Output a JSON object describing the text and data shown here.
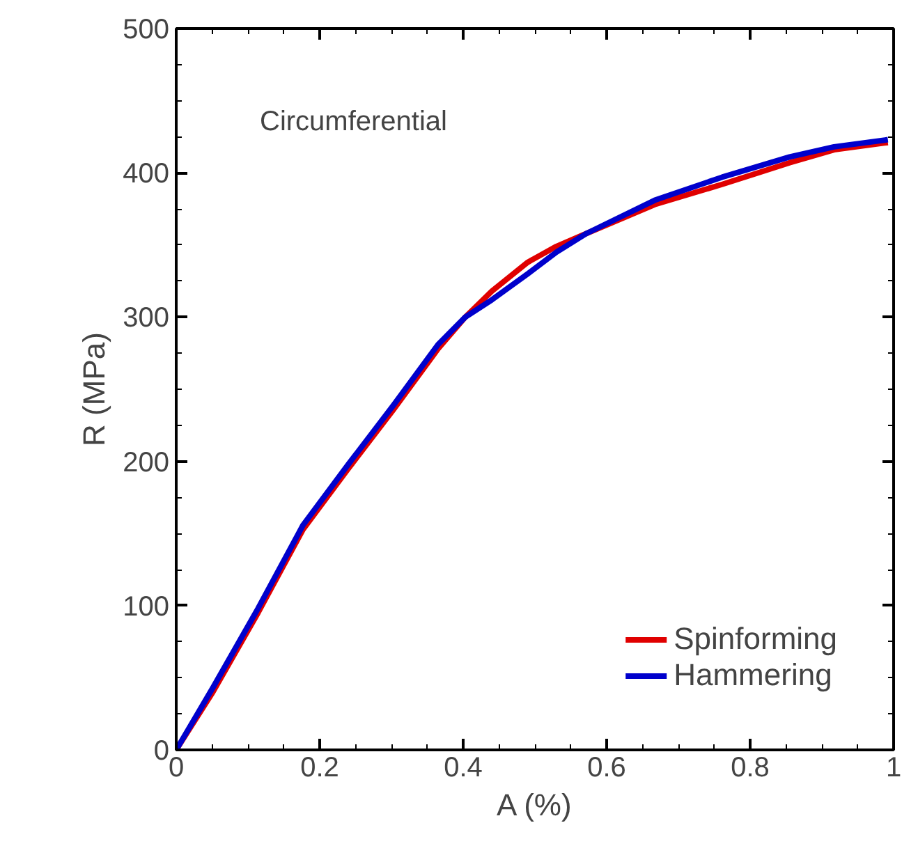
{
  "chart_data": {
    "type": "line",
    "xlabel": "A (%)",
    "ylabel": "R (MPa)",
    "annotations": [
      "Circumferential"
    ],
    "xlim": [
      0,
      1
    ],
    "ylim": [
      0,
      500
    ],
    "xticks": [
      0,
      0.2,
      0.4,
      0.6,
      0.8,
      1
    ],
    "yticks": [
      0,
      100,
      200,
      300,
      400,
      500
    ],
    "grid": false,
    "legend": "bottom right",
    "line_style": "solid",
    "marker": "none",
    "series": [
      {
        "name": "Spinforming",
        "color": "#e00000",
        "x": [
          0,
          0.051,
          0.114,
          0.177,
          0.24,
          0.303,
          0.365,
          0.403,
          0.44,
          0.49,
          0.53,
          0.572,
          0.667,
          0.761,
          0.855,
          0.917,
          0.992
        ],
        "values": [
          0,
          40,
          95,
          153,
          195,
          236,
          278,
          300,
          318,
          338,
          349,
          358,
          378,
          392,
          407,
          416,
          421
        ]
      },
      {
        "name": "Hammering",
        "color": "#0000cc",
        "x": [
          0,
          0.051,
          0.114,
          0.177,
          0.24,
          0.303,
          0.365,
          0.403,
          0.44,
          0.49,
          0.53,
          0.572,
          0.667,
          0.761,
          0.855,
          0.917,
          0.992
        ],
        "values": [
          0,
          43,
          98,
          156,
          198,
          239,
          281,
          300,
          312,
          330,
          345,
          358,
          381,
          397,
          411,
          418,
          423
        ]
      }
    ]
  }
}
